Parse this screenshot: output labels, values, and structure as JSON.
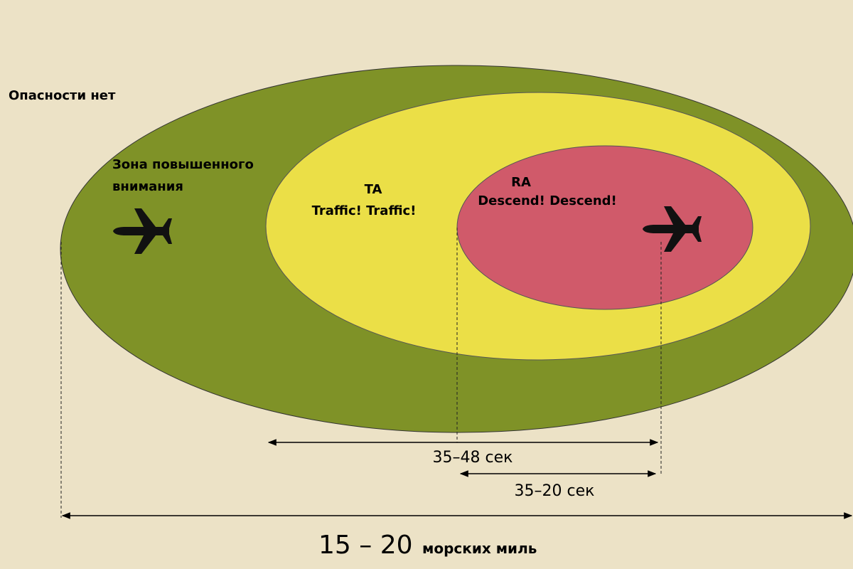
{
  "zones": {
    "no_danger": {
      "label": "Опасности нет"
    },
    "caution": {
      "label_lines": [
        "Зона повышенного",
        "внимания"
      ]
    },
    "ta": {
      "label_lines": [
        "TA",
        "Traffic! Traffic!"
      ]
    },
    "ra": {
      "label_lines": [
        "RA",
        "Descend! Descend!"
      ]
    }
  },
  "dimensions": {
    "ta_time": "35–48 сек",
    "ra_time": "35–20 сек",
    "range": {
      "value": "15 – 20",
      "unit": "морских миль"
    }
  }
}
